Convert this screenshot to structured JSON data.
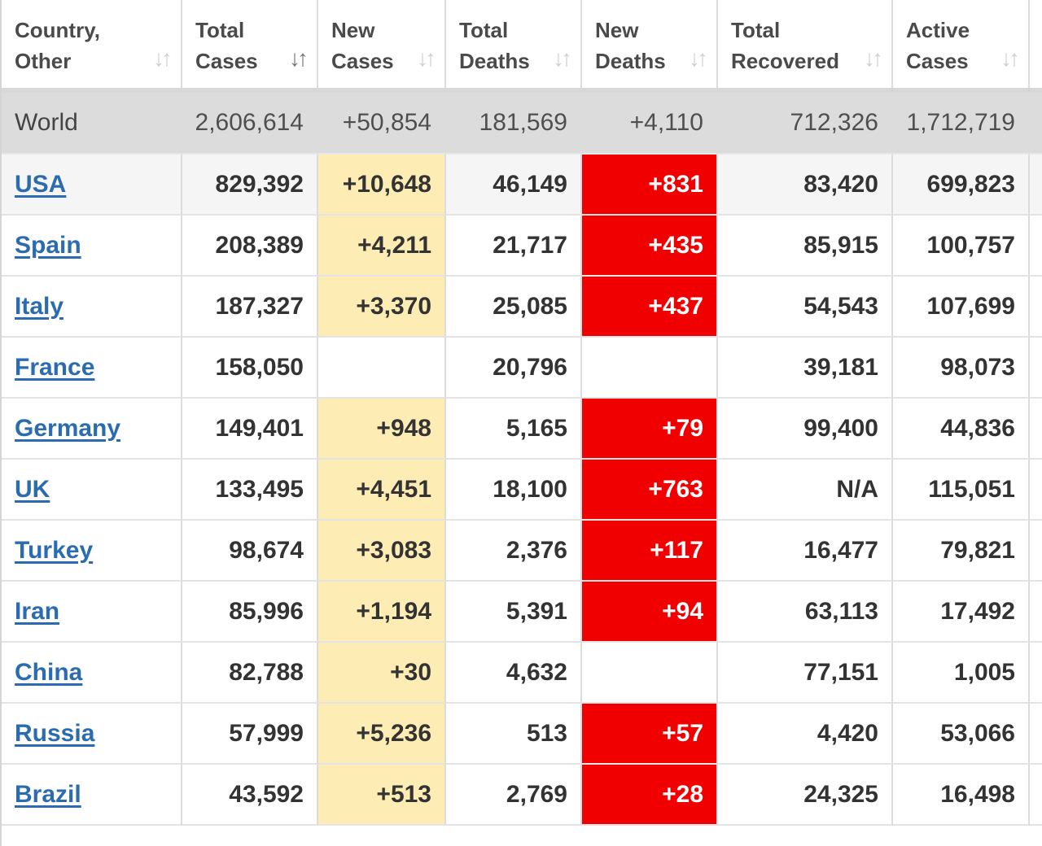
{
  "table": {
    "columns": [
      {
        "label": "Country,\nOther",
        "sort": "none"
      },
      {
        "label": "Total\nCases",
        "sort": "active"
      },
      {
        "label": "New\nCases",
        "sort": "none"
      },
      {
        "label": "Total\nDeaths",
        "sort": "none"
      },
      {
        "label": "New\nDeaths",
        "sort": "none"
      },
      {
        "label": "Total\nRecovered",
        "sort": "none"
      },
      {
        "label": "Active\nCases",
        "sort": "none"
      }
    ],
    "sort_icon_glyph": "↓↑",
    "world": {
      "country": "World",
      "total_cases": "2,606,614",
      "new_cases": "+50,854",
      "total_deaths": "181,569",
      "new_deaths": "+4,110",
      "total_recovered": "712,326",
      "active_cases": "1,712,719"
    },
    "rows": [
      {
        "country": "USA",
        "total_cases": "829,392",
        "new_cases": "+10,648",
        "total_deaths": "46,149",
        "new_deaths": "+831",
        "total_recovered": "83,420",
        "active_cases": "699,823"
      },
      {
        "country": "Spain",
        "total_cases": "208,389",
        "new_cases": "+4,211",
        "total_deaths": "21,717",
        "new_deaths": "+435",
        "total_recovered": "85,915",
        "active_cases": "100,757"
      },
      {
        "country": "Italy",
        "total_cases": "187,327",
        "new_cases": "+3,370",
        "total_deaths": "25,085",
        "new_deaths": "+437",
        "total_recovered": "54,543",
        "active_cases": "107,699"
      },
      {
        "country": "France",
        "total_cases": "158,050",
        "new_cases": "",
        "total_deaths": "20,796",
        "new_deaths": "",
        "total_recovered": "39,181",
        "active_cases": "98,073"
      },
      {
        "country": "Germany",
        "total_cases": "149,401",
        "new_cases": "+948",
        "total_deaths": "5,165",
        "new_deaths": "+79",
        "total_recovered": "99,400",
        "active_cases": "44,836"
      },
      {
        "country": "UK",
        "total_cases": "133,495",
        "new_cases": "+4,451",
        "total_deaths": "18,100",
        "new_deaths": "+763",
        "total_recovered": "N/A",
        "active_cases": "115,051"
      },
      {
        "country": "Turkey",
        "total_cases": "98,674",
        "new_cases": "+3,083",
        "total_deaths": "2,376",
        "new_deaths": "+117",
        "total_recovered": "16,477",
        "active_cases": "79,821"
      },
      {
        "country": "Iran",
        "total_cases": "85,996",
        "new_cases": "+1,194",
        "total_deaths": "5,391",
        "new_deaths": "+94",
        "total_recovered": "63,113",
        "active_cases": "17,492"
      },
      {
        "country": "China",
        "total_cases": "82,788",
        "new_cases": "+30",
        "total_deaths": "4,632",
        "new_deaths": "",
        "total_recovered": "77,151",
        "active_cases": "1,005"
      },
      {
        "country": "Russia",
        "total_cases": "57,999",
        "new_cases": "+5,236",
        "total_deaths": "513",
        "new_deaths": "+57",
        "total_recovered": "4,420",
        "active_cases": "53,066"
      },
      {
        "country": "Brazil",
        "total_cases": "43,592",
        "new_cases": "+513",
        "total_deaths": "2,769",
        "new_deaths": "+28",
        "total_recovered": "24,325",
        "active_cases": "16,498"
      }
    ]
  },
  "colors": {
    "new_cases_highlight": "#fdecb3",
    "new_deaths_highlight": "#f00000",
    "link": "#2b6bb0",
    "world_row": "#dcdcdc"
  }
}
